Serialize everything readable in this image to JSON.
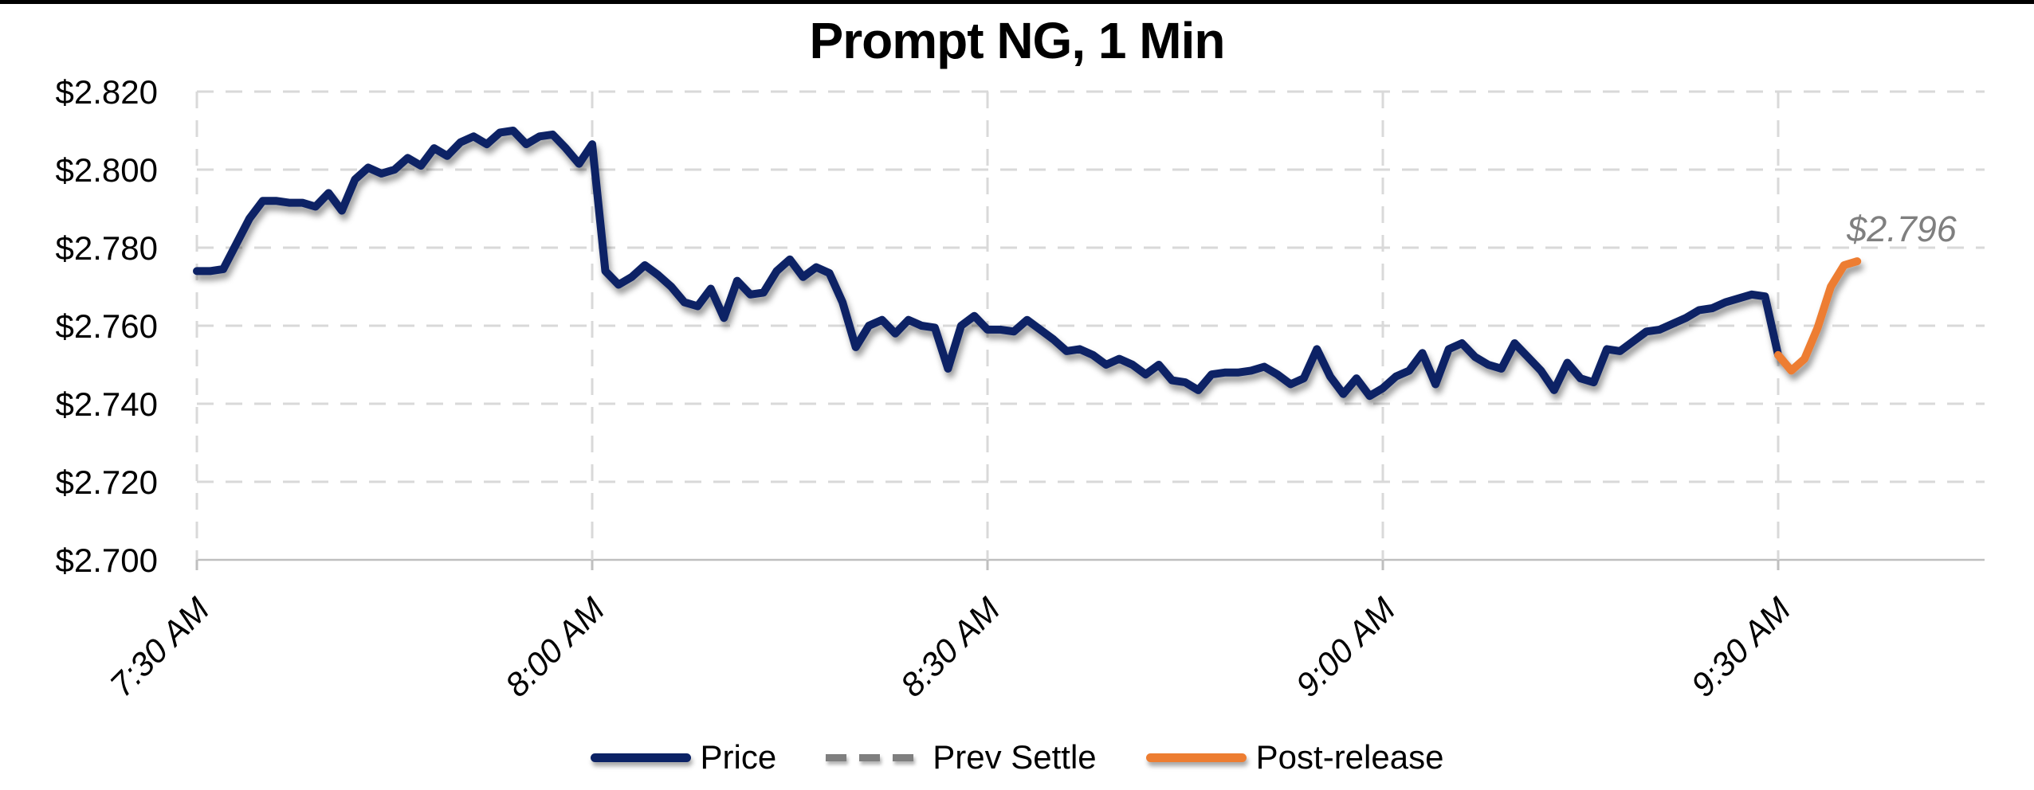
{
  "title": "Prompt NG, 1 Min",
  "annotation": {
    "text": "$2.796",
    "color": "#7f7f7f"
  },
  "legend": {
    "items": [
      {
        "label": "Price",
        "color": "#0b2265",
        "style": "solid"
      },
      {
        "label": "Prev Settle",
        "color": "#7f7f7f",
        "style": "dashed"
      },
      {
        "label": "Post-release",
        "color": "#ed7d31",
        "style": "solid"
      }
    ]
  },
  "chart_data": {
    "type": "line",
    "title": "Prompt NG, 1 Min",
    "xlabel": "",
    "ylabel": "",
    "ylim": [
      2.7,
      2.82
    ],
    "y_ticks": [
      "$2.820",
      "$2.800",
      "$2.780",
      "$2.760",
      "$2.740",
      "$2.720",
      "$2.700"
    ],
    "x_ticks": [
      "7:30 AM",
      "8:00 AM",
      "8:30 AM",
      "9:00 AM",
      "9:30 AM"
    ],
    "grid": true,
    "legend_position": "bottom",
    "prev_settle": {
      "label": "Prev Settle",
      "value": 2.796,
      "annotation": "$2.796",
      "color": "#7f7f7f",
      "style": "dashed"
    },
    "series": [
      {
        "name": "Price",
        "color": "#0b2265",
        "style": "solid",
        "start_time": "7:30 AM",
        "interval_minutes": 1,
        "values": [
          2.774,
          2.774,
          2.7745,
          2.781,
          2.7875,
          2.792,
          2.792,
          2.7915,
          2.7915,
          2.7905,
          2.794,
          2.7895,
          2.7975,
          2.8005,
          2.799,
          2.8,
          2.803,
          2.801,
          2.8055,
          2.8035,
          2.807,
          2.8085,
          2.8065,
          2.8095,
          2.81,
          2.8065,
          2.8085,
          2.809,
          2.8055,
          2.8015,
          2.8065,
          2.774,
          2.7705,
          2.7725,
          2.7755,
          2.773,
          2.77,
          2.766,
          2.765,
          2.7695,
          2.762,
          2.7715,
          2.768,
          2.7685,
          2.774,
          2.777,
          2.7725,
          2.775,
          2.7735,
          2.766,
          2.7545,
          2.76,
          2.7615,
          2.758,
          2.7615,
          2.76,
          2.7595,
          2.749,
          2.76,
          2.7625,
          2.759,
          2.759,
          2.7585,
          2.7615,
          2.759,
          2.7565,
          2.7535,
          2.754,
          2.7525,
          2.75,
          2.7515,
          2.75,
          2.7475,
          2.75,
          2.746,
          2.7455,
          2.7435,
          2.7475,
          2.748,
          2.748,
          2.7485,
          2.7495,
          2.7475,
          2.745,
          2.7465,
          2.754,
          2.747,
          2.7425,
          2.7465,
          2.742,
          2.744,
          2.747,
          2.7485,
          2.753,
          2.745,
          2.754,
          2.7555,
          2.752,
          2.75,
          2.749,
          2.7555,
          2.752,
          2.7485,
          2.7435,
          2.7505,
          2.7465,
          2.7455,
          2.754,
          2.7535,
          2.756,
          2.7585,
          2.759,
          2.7605,
          2.762,
          2.764,
          2.7645,
          2.766,
          2.767,
          2.768,
          2.7675,
          2.7525
        ]
      },
      {
        "name": "Post-release",
        "color": "#ed7d31",
        "style": "solid",
        "start_time": "9:30 AM",
        "interval_minutes": 1,
        "values": [
          2.7525,
          2.7485,
          2.7515,
          2.7595,
          2.77,
          2.7755,
          2.7765
        ]
      }
    ]
  }
}
